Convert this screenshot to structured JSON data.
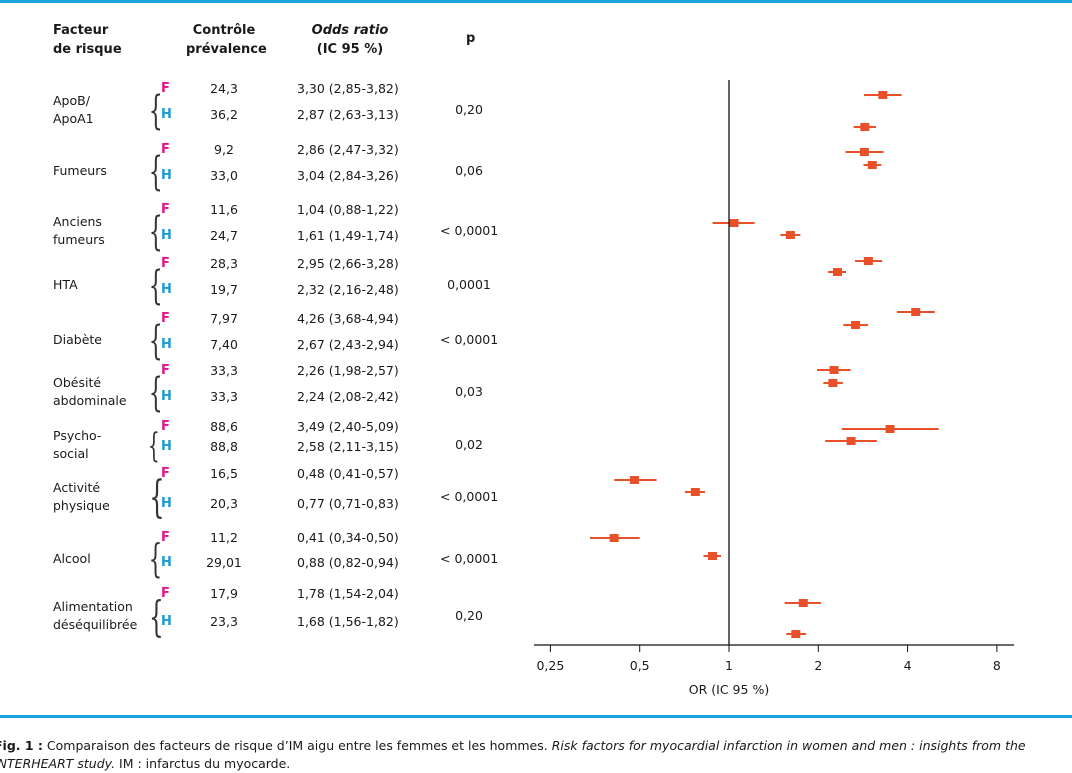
{
  "headers": {
    "factor": [
      "Facteur",
      "de risque"
    ],
    "prevalence": [
      "Contrôle",
      "prévalence"
    ],
    "odds": [
      "Odds ratio",
      "(IC 95 %)"
    ],
    "p": "p"
  },
  "chart_data": {
    "type": "forest",
    "x_scale": "log2",
    "xlim": [
      0.25,
      8
    ],
    "x_ticks": [
      "0,25",
      "0,5",
      "1",
      "2",
      "4",
      "8"
    ],
    "x_tick_values": [
      0.25,
      0.5,
      1,
      2,
      4,
      8
    ],
    "xlabel": "OR (IC 95 %)",
    "reference_line": 1,
    "marker_color": "#e8502a",
    "groups": [
      {
        "factor": [
          "ApoB/",
          "ApoA1"
        ],
        "p": "0,20",
        "rows": [
          {
            "sex": "F",
            "prevalence": "24,3",
            "or_text": "3,30 (2,85-3,82)",
            "or": 3.3,
            "lo": 2.85,
            "hi": 3.82
          },
          {
            "sex": "H",
            "prevalence": "36,2",
            "or_text": "2,87 (2,63-3,13)",
            "or": 2.87,
            "lo": 2.63,
            "hi": 3.13
          }
        ]
      },
      {
        "factor": [
          "Fumeurs"
        ],
        "p": "0,06",
        "rows": [
          {
            "sex": "F",
            "prevalence": "9,2",
            "or_text": "2,86 (2,47-3,32)",
            "or": 2.86,
            "lo": 2.47,
            "hi": 3.32
          },
          {
            "sex": "H",
            "prevalence": "33,0",
            "or_text": "3,04 (2,84-3,26)",
            "or": 3.04,
            "lo": 2.84,
            "hi": 3.26
          }
        ]
      },
      {
        "factor": [
          "Anciens",
          "fumeurs"
        ],
        "p": "< 0,0001",
        "rows": [
          {
            "sex": "F",
            "prevalence": "11,6",
            "or_text": "1,04 (0,88-1,22)",
            "or": 1.04,
            "lo": 0.88,
            "hi": 1.22
          },
          {
            "sex": "H",
            "prevalence": "24,7",
            "or_text": "1,61 (1,49-1,74)",
            "or": 1.61,
            "lo": 1.49,
            "hi": 1.74
          }
        ]
      },
      {
        "factor": [
          "HTA"
        ],
        "p": "0,0001",
        "rows": [
          {
            "sex": "F",
            "prevalence": "28,3",
            "or_text": "2,95 (2,66-3,28)",
            "or": 2.95,
            "lo": 2.66,
            "hi": 3.28
          },
          {
            "sex": "H",
            "prevalence": "19,7",
            "or_text": "2,32 (2,16-2,48)",
            "or": 2.32,
            "lo": 2.16,
            "hi": 2.48
          }
        ]
      },
      {
        "factor": [
          "Diabète"
        ],
        "p": "< 0,0001",
        "rows": [
          {
            "sex": "F",
            "prevalence": "7,97",
            "or_text": "4,26 (3,68-4,94)",
            "or": 4.26,
            "lo": 3.68,
            "hi": 4.94
          },
          {
            "sex": "H",
            "prevalence": "7,40",
            "or_text": "2,67 (2,43-2,94)",
            "or": 2.67,
            "lo": 2.43,
            "hi": 2.94
          }
        ]
      },
      {
        "factor": [
          "Obésité",
          "abdominale"
        ],
        "p": "0,03",
        "rows": [
          {
            "sex": "F",
            "prevalence": "33,3",
            "or_text": "2,26 (1,98-2,57)",
            "or": 2.26,
            "lo": 1.98,
            "hi": 2.57
          },
          {
            "sex": "H",
            "prevalence": "33,3",
            "or_text": "2,24 (2,08-2,42)",
            "or": 2.24,
            "lo": 2.08,
            "hi": 2.42
          }
        ]
      },
      {
        "factor": [
          "Psycho-",
          "social"
        ],
        "p": "0,02",
        "rows": [
          {
            "sex": "F",
            "prevalence": "88,6",
            "or_text": "3,49 (2,40-5,09)",
            "or": 3.49,
            "lo": 2.4,
            "hi": 5.09
          },
          {
            "sex": "H",
            "prevalence": "88,8",
            "or_text": "2,58 (2,11-3,15)",
            "or": 2.58,
            "lo": 2.11,
            "hi": 3.15
          }
        ]
      },
      {
        "factor": [
          "Activité",
          "physique"
        ],
        "p": "< 0,0001",
        "rows": [
          {
            "sex": "F",
            "prevalence": "16,5",
            "or_text": "0,48 (0,41-0,57)",
            "or": 0.48,
            "lo": 0.41,
            "hi": 0.57
          },
          {
            "sex": "H",
            "prevalence": "20,3",
            "or_text": "0,77 (0,71-0,83)",
            "or": 0.77,
            "lo": 0.71,
            "hi": 0.83
          }
        ]
      },
      {
        "factor": [
          "Alcool"
        ],
        "p": "< 0,0001",
        "rows": [
          {
            "sex": "F",
            "prevalence": "11,2",
            "or_text": "0,41 (0,34-0,50)",
            "or": 0.41,
            "lo": 0.34,
            "hi": 0.5
          },
          {
            "sex": "H",
            "prevalence": "29,01",
            "or_text": "0,88 (0,82-0,94)",
            "or": 0.88,
            "lo": 0.82,
            "hi": 0.94
          }
        ]
      },
      {
        "factor": [
          "Alimentation",
          "déséquilibrée"
        ],
        "p": "0,20",
        "rows": [
          {
            "sex": "F",
            "prevalence": "17,9",
            "or_text": "1,78 (1,54-2,04)",
            "or": 1.78,
            "lo": 1.54,
            "hi": 2.04
          },
          {
            "sex": "H",
            "prevalence": "23,3",
            "or_text": "1,68 (1,56-1,82)",
            "or": 1.68,
            "lo": 1.56,
            "hi": 1.82
          }
        ]
      }
    ]
  },
  "caption": {
    "label": "Fig. 1 :",
    "text1": " Comparaison des facteurs de risque d’IM aigu entre les femmes et les hommes. ",
    "italic": "Risk factors for myocardial infarction in women and men : insights from the",
    "italic2": "INTERHEART study.",
    "text2": " IM : infarctus du myocarde."
  }
}
